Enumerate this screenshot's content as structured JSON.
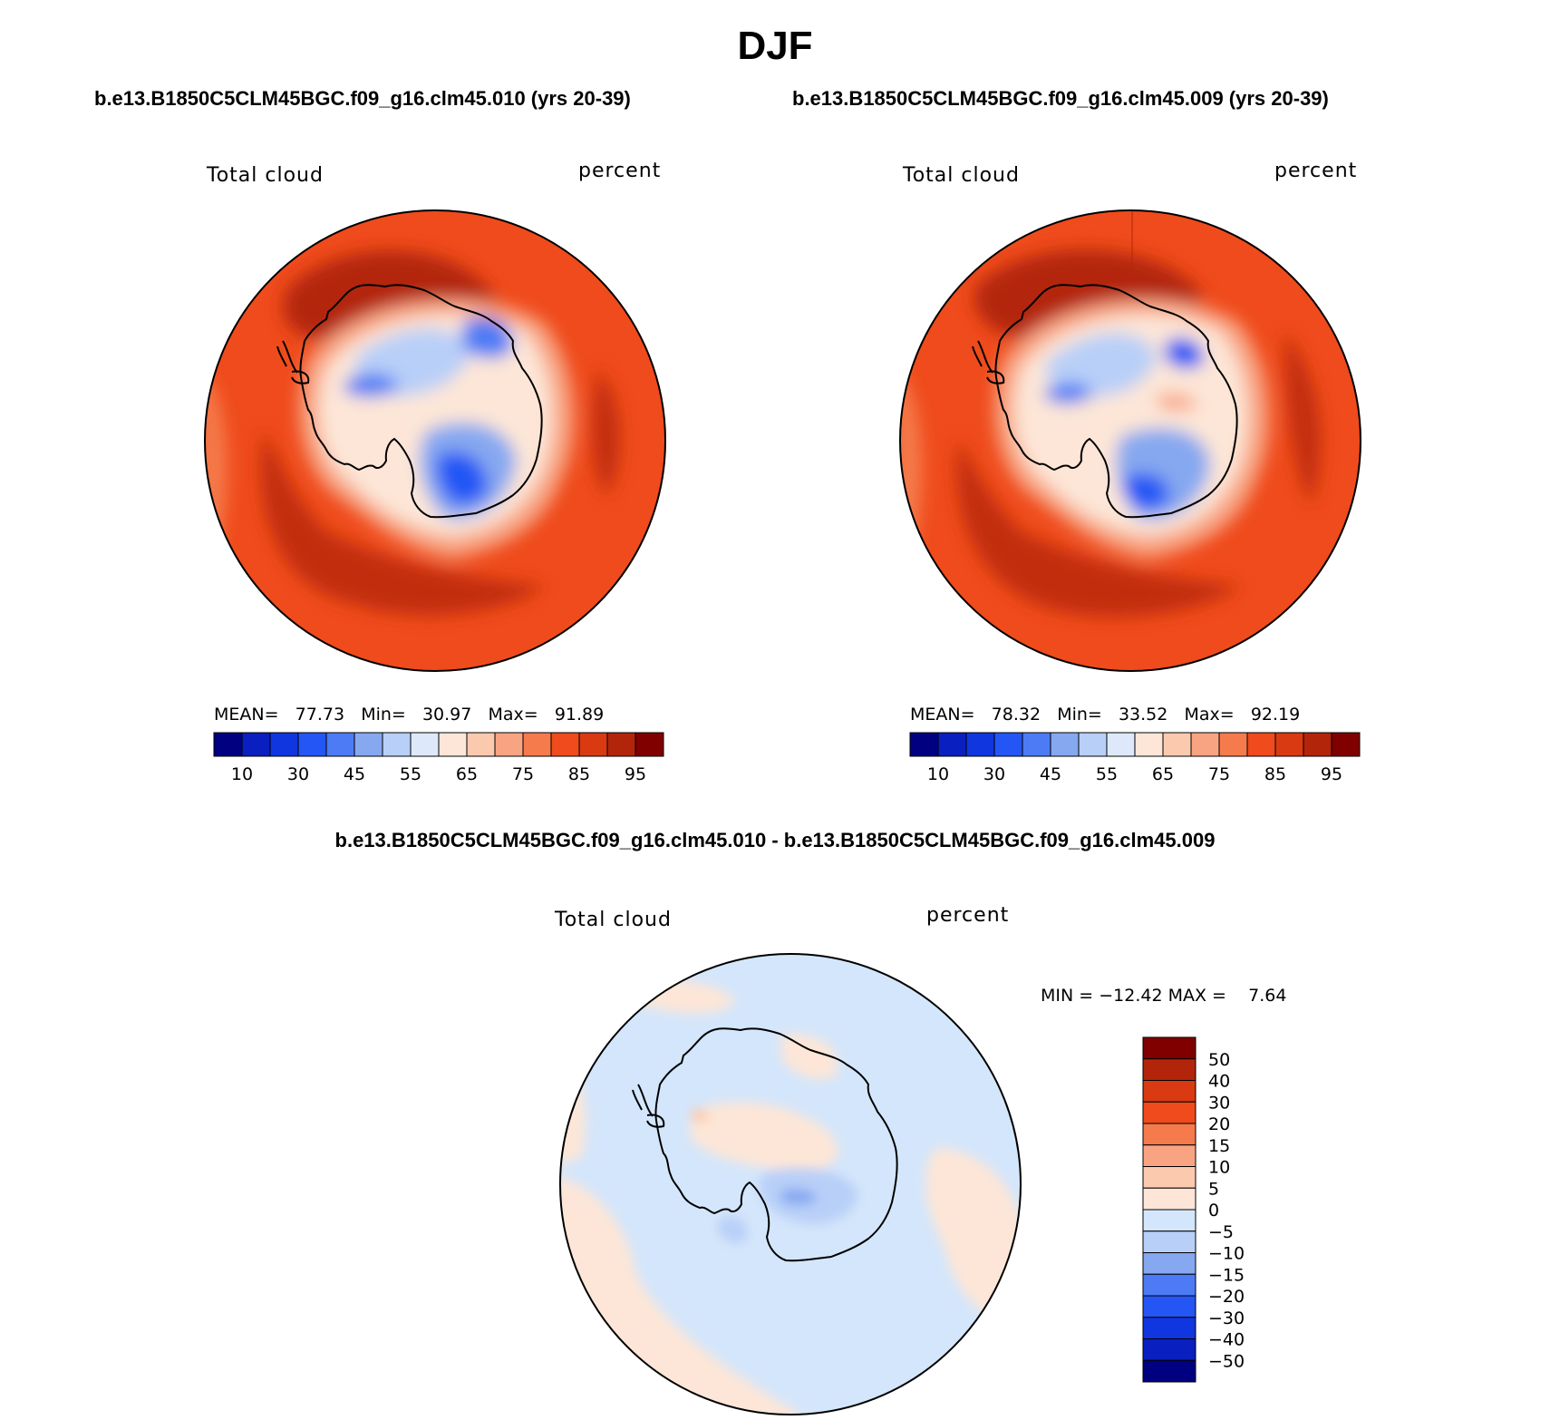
{
  "page": {
    "title": "DJF",
    "case_a": "b.e13.B1850C5CLM45BGC.f09_g16.clm45.010 (yrs 20-39)",
    "case_b": "b.e13.B1850C5CLM45BGC.f09_g16.clm45.009 (yrs 20-39)",
    "diff_title": "b.e13.B1850C5CLM45BGC.f09_g16.clm45.010 - b.e13.B1850C5CLM45BGC.f09_g16.clm45.009"
  },
  "chart_data": [
    {
      "type": "heatmap",
      "projection": "south-polar-stereographic",
      "variable": "Total cloud",
      "units": "percent",
      "stats": {
        "mean_label": "MEAN=",
        "mean": "77.73",
        "min_label": "Min=",
        "min": "30.97",
        "max_label": "Max=",
        "max": "91.89"
      },
      "colorbar": {
        "orientation": "horizontal",
        "levels": [
          10,
          20,
          30,
          40,
          45,
          50,
          55,
          60,
          65,
          70,
          75,
          80,
          85,
          90,
          95
        ],
        "tick_labels": [
          "10",
          "30",
          "45",
          "55",
          "65",
          "75",
          "85",
          "95"
        ],
        "colors": [
          "#000080",
          "#0a1fbf",
          "#1036e0",
          "#2456f5",
          "#4d7bf5",
          "#86a8f0",
          "#b8cff8",
          "#dde9fa",
          "#fde6d7",
          "#fbc9ae",
          "#f8a483",
          "#f57a4c",
          "#ef4b1c",
          "#d93a12",
          "#b3250a",
          "#800000"
        ]
      }
    },
    {
      "type": "heatmap",
      "projection": "south-polar-stereographic",
      "variable": "Total cloud",
      "units": "percent",
      "stats": {
        "mean_label": "MEAN=",
        "mean": "78.32",
        "min_label": "Min=",
        "min": "33.52",
        "max_label": "Max=",
        "max": "92.19"
      },
      "colorbar": {
        "orientation": "horizontal",
        "levels": [
          10,
          20,
          30,
          40,
          45,
          50,
          55,
          60,
          65,
          70,
          75,
          80,
          85,
          90,
          95
        ],
        "tick_labels": [
          "10",
          "30",
          "45",
          "55",
          "65",
          "75",
          "85",
          "95"
        ],
        "colors": [
          "#000080",
          "#0a1fbf",
          "#1036e0",
          "#2456f5",
          "#4d7bf5",
          "#86a8f0",
          "#b8cff8",
          "#dde9fa",
          "#fde6d7",
          "#fbc9ae",
          "#f8a483",
          "#f57a4c",
          "#ef4b1c",
          "#d93a12",
          "#b3250a",
          "#800000"
        ]
      }
    },
    {
      "type": "heatmap",
      "projection": "south-polar-stereographic",
      "variable": "Total cloud",
      "units": "percent",
      "stats": {
        "min_label": "MIN =",
        "min": "−12.42",
        "max_label": "MAX =",
        "max": "7.64"
      },
      "colorbar": {
        "orientation": "vertical",
        "levels": [
          50,
          40,
          30,
          20,
          15,
          10,
          5,
          0,
          -5,
          -10,
          -15,
          -20,
          -30,
          -40,
          -50
        ],
        "tick_labels": [
          "50",
          "40",
          "30",
          "20",
          "15",
          "10",
          "5",
          "0",
          "−5",
          "−10",
          "−15",
          "−20",
          "−30",
          "−40",
          "−50"
        ],
        "colors_top_to_bottom": [
          "#800000",
          "#b3250a",
          "#d93a12",
          "#ef4b1c",
          "#f57a4c",
          "#f8a483",
          "#fbc9ae",
          "#fde6d7",
          "#d4e6fb",
          "#b8cff8",
          "#86a8f0",
          "#4d7bf5",
          "#2456f5",
          "#1036e0",
          "#0a1fbf",
          "#000080"
        ]
      }
    }
  ]
}
